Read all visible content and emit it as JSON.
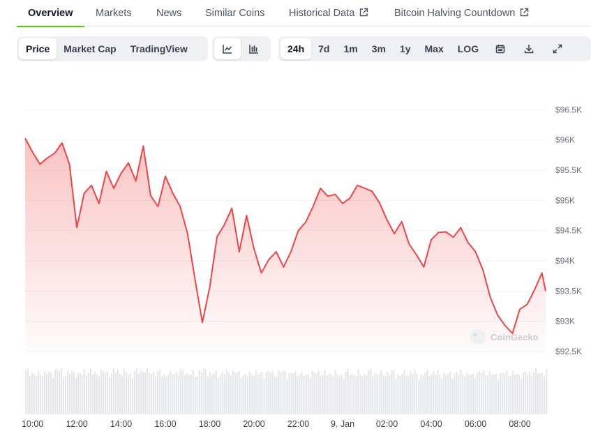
{
  "tabs": [
    {
      "label": "Overview",
      "active": true,
      "external": false
    },
    {
      "label": "Markets",
      "active": false,
      "external": false
    },
    {
      "label": "News",
      "active": false,
      "external": false
    },
    {
      "label": "Similar Coins",
      "active": false,
      "external": false
    },
    {
      "label": "Historical Data",
      "active": false,
      "external": true
    },
    {
      "label": "Bitcoin Halving Countdown",
      "active": false,
      "external": true
    }
  ],
  "toolbar": {
    "metric_options": [
      "Price",
      "Market Cap",
      "TradingView"
    ],
    "metric_selected": "Price",
    "chart_type_icons": [
      "line-chart-icon",
      "candlestick-chart-icon"
    ],
    "chart_type_selected": "line-chart-icon",
    "ranges": [
      "24h",
      "7d",
      "1m",
      "3m",
      "1y",
      "Max",
      "LOG"
    ],
    "range_selected": "24h",
    "tool_icons": [
      "calendar-icon",
      "download-icon",
      "fullscreen-icon"
    ]
  },
  "colors": {
    "accent_green": "#4bcc00",
    "line_red": "#ef4444",
    "volume_gray": "#e5e7eb"
  },
  "watermark": "CoinGecko",
  "chart_data": {
    "type": "area",
    "title": "",
    "xlabel": "",
    "ylabel": "",
    "ylim": [
      92500,
      96700
    ],
    "y_ticks": [
      92500,
      93000,
      93500,
      94000,
      94500,
      95000,
      95500,
      96000,
      96500
    ],
    "y_tick_labels": [
      "$92.5K",
      "$93K",
      "$93.5K",
      "$94K",
      "$94.5K",
      "$95K",
      "$95.5K",
      "$96K",
      "$96.5K"
    ],
    "x_range": [
      "09:40",
      "09:10+1d"
    ],
    "x_tick_labels": [
      "10:00",
      "12:00",
      "14:00",
      "16:00",
      "18:00",
      "20:00",
      "22:00",
      "9. Jan",
      "02:00",
      "04:00",
      "06:00",
      "08:00"
    ],
    "grid": true,
    "series": [
      {
        "x": [
          "09:40",
          "10:00",
          "10:20",
          "10:40",
          "11:00",
          "11:20",
          "11:40",
          "12:00",
          "12:20",
          "12:40",
          "13:00",
          "13:20",
          "13:40",
          "14:00",
          "14:20",
          "14:40",
          "15:00",
          "15:20",
          "15:40",
          "16:00",
          "16:20",
          "16:40",
          "17:00",
          "17:20",
          "17:40",
          "18:00",
          "18:20",
          "18:40",
          "19:00",
          "19:20",
          "19:40",
          "20:00",
          "20:20",
          "20:40",
          "21:00",
          "21:20",
          "21:40",
          "22:00",
          "22:20",
          "22:40",
          "23:00",
          "23:20",
          "23:40",
          "00:00",
          "00:20",
          "00:40",
          "01:00",
          "01:20",
          "01:40",
          "02:00",
          "02:20",
          "02:40",
          "03:00",
          "03:20",
          "03:40",
          "04:00",
          "04:20",
          "04:40",
          "05:00",
          "05:20",
          "05:40",
          "06:00",
          "06:20",
          "06:40",
          "07:00",
          "07:20",
          "07:40",
          "08:00",
          "08:20",
          "08:40",
          "09:00",
          "09:10"
        ],
        "values": [
          96030,
          95800,
          95600,
          95700,
          95780,
          95950,
          95600,
          94550,
          95120,
          95250,
          94950,
          95480,
          95200,
          95450,
          95620,
          95320,
          95900,
          95080,
          94900,
          95400,
          95120,
          94900,
          94450,
          93700,
          92980,
          93560,
          94400,
          94600,
          94870,
          94150,
          94750,
          94200,
          93800,
          94020,
          94150,
          93900,
          94150,
          94500,
          94640,
          94900,
          95200,
          95070,
          95100,
          94950,
          95040,
          95250,
          95200,
          95150,
          94960,
          94680,
          94450,
          94650,
          94280,
          94100,
          93900,
          94350,
          94470,
          94480,
          94390,
          94550,
          94300,
          94150,
          93850,
          93400,
          93100,
          92930,
          92800,
          93200,
          93280,
          93520,
          93800,
          93500
        ],
        "volume": [
          0.92,
          0.85,
          0.9,
          0.88,
          0.95,
          0.87,
          0.9,
          0.86,
          0.93,
          0.88,
          0.91,
          0.89,
          0.94,
          0.9,
          0.87,
          0.92,
          0.96,
          0.9,
          0.88,
          0.85,
          0.9,
          0.92,
          0.88,
          0.86,
          0.95,
          0.89,
          0.87,
          0.9,
          0.93,
          0.88,
          0.85,
          0.9,
          0.87,
          0.91,
          0.88,
          0.92,
          0.86,
          0.9,
          0.84,
          0.88,
          0.91,
          0.87,
          0.89,
          0.85,
          0.9,
          0.88,
          0.86,
          0.92,
          0.89,
          0.87,
          0.9,
          0.86,
          0.88,
          0.91,
          0.85,
          0.89,
          0.9,
          0.87,
          0.86,
          0.88,
          0.9,
          0.85,
          0.89,
          0.91,
          0.87,
          0.86,
          0.9,
          0.88,
          0.85,
          0.89,
          0.92,
          0.9
        ]
      }
    ]
  }
}
